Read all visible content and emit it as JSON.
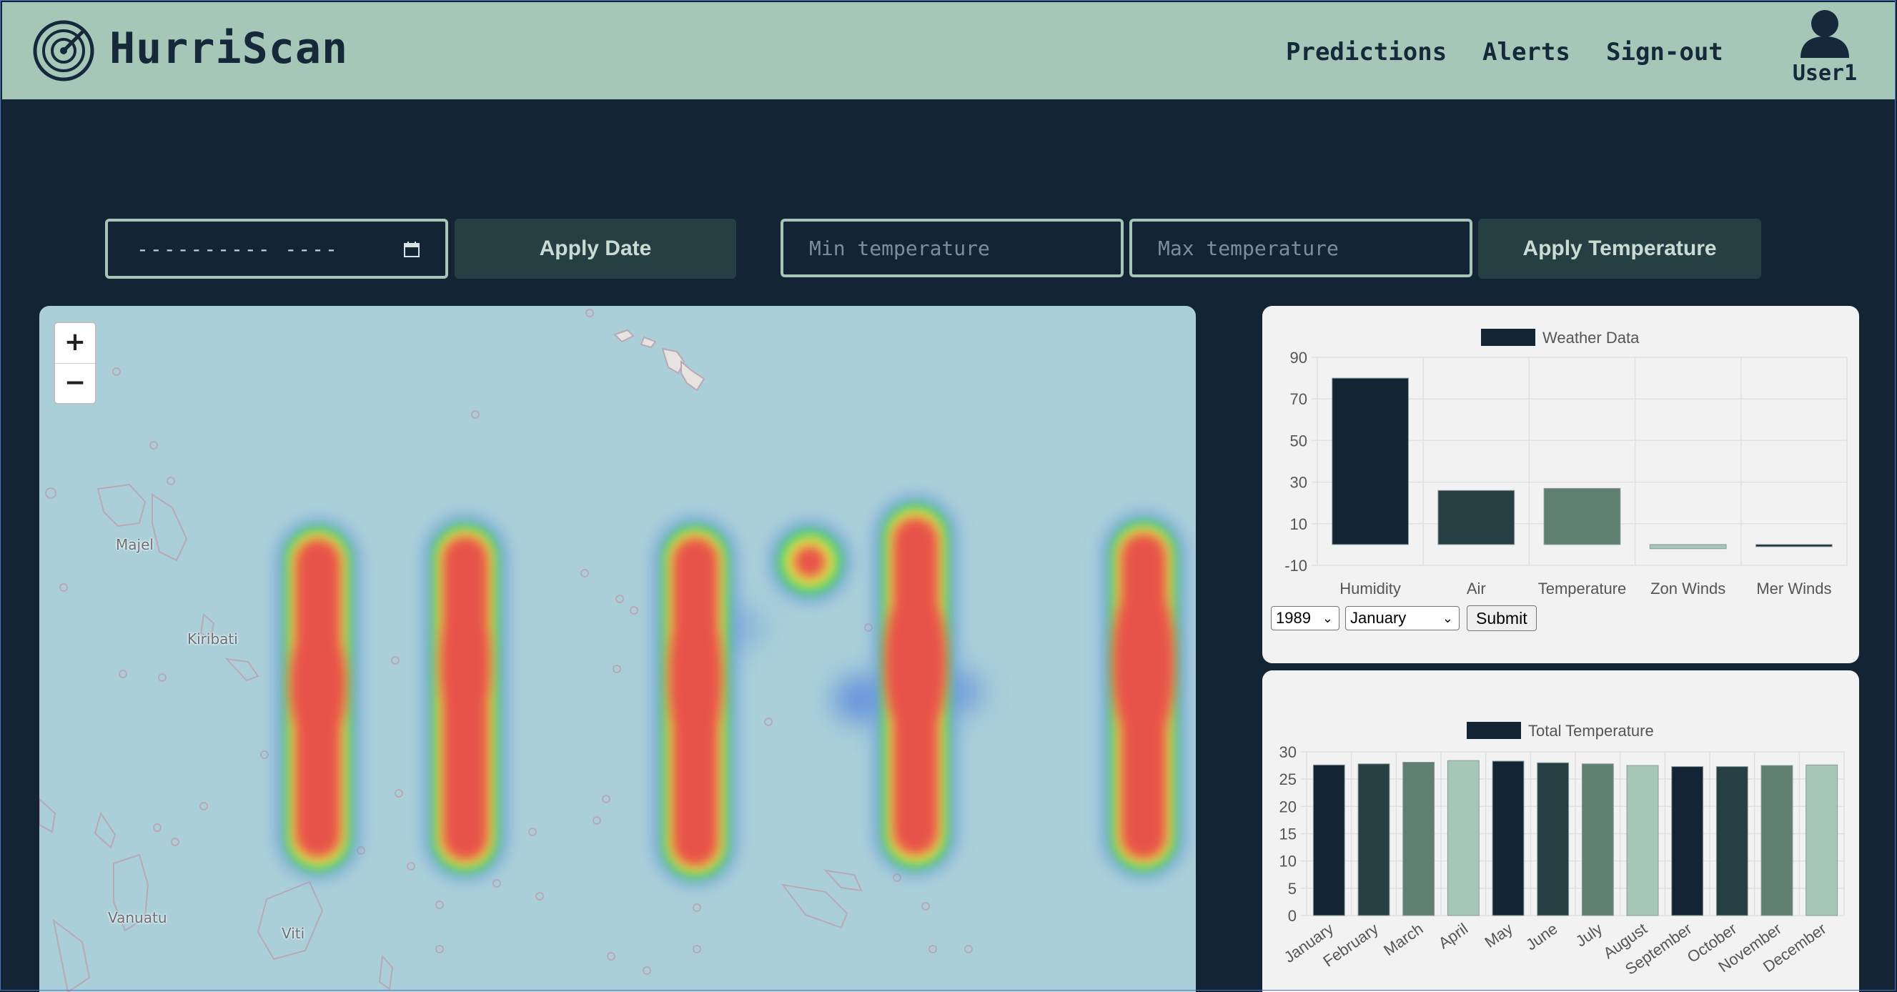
{
  "header": {
    "logo_icon": "radar-icon",
    "brand": "HurriScan",
    "nav": [
      "Predictions",
      "Alerts",
      "Sign-out"
    ],
    "user": {
      "icon": "user-icon",
      "label": "User1"
    }
  },
  "filters": {
    "date_value": "---------- ----",
    "apply_date_label": "Apply Date",
    "min_temp_placeholder": "Min temperature",
    "max_temp_placeholder": "Max temperature",
    "apply_temp_label": "Apply Temperature"
  },
  "map": {
    "zoom_in": "+",
    "zoom_out": "−",
    "places": [
      "Majel",
      "Kiribati",
      "Vanuatu",
      "Viti"
    ]
  },
  "weather_form": {
    "year": "1989",
    "month": "January",
    "submit_label": "Submit"
  },
  "chart_data": [
    {
      "type": "bar",
      "legend": "Weather Data",
      "categories": [
        "Humidity",
        "Air",
        "Temperature",
        "Zon Winds",
        "Mer Winds"
      ],
      "values": [
        80,
        26,
        27,
        -2,
        -0.5
      ],
      "colors": [
        "#132534",
        "#263f43",
        "#5f7f70",
        "#a6c6b8",
        "#132534"
      ],
      "yticks": [
        90,
        70,
        50,
        30,
        10,
        -10
      ],
      "ylim": [
        -10,
        90
      ],
      "grid": true,
      "legend_position": "top"
    },
    {
      "type": "bar",
      "legend": "Total Temperature",
      "categories": [
        "January",
        "February",
        "March",
        "April",
        "May",
        "June",
        "July",
        "August",
        "September",
        "October",
        "November",
        "December"
      ],
      "values": [
        27.6,
        27.8,
        28.1,
        28.4,
        28.3,
        28.0,
        27.8,
        27.5,
        27.3,
        27.3,
        27.5,
        27.6
      ],
      "colors": [
        "#132534",
        "#263f43",
        "#5f7f70",
        "#a6c6b8",
        "#132534",
        "#263f43",
        "#5f7f70",
        "#a6c6b8",
        "#132534",
        "#263f43",
        "#5f7f70",
        "#a6c6b8"
      ],
      "yticks": [
        30,
        25,
        20,
        15,
        10,
        5,
        0
      ],
      "ylim": [
        0,
        30
      ],
      "grid": true,
      "legend_position": "top"
    }
  ]
}
